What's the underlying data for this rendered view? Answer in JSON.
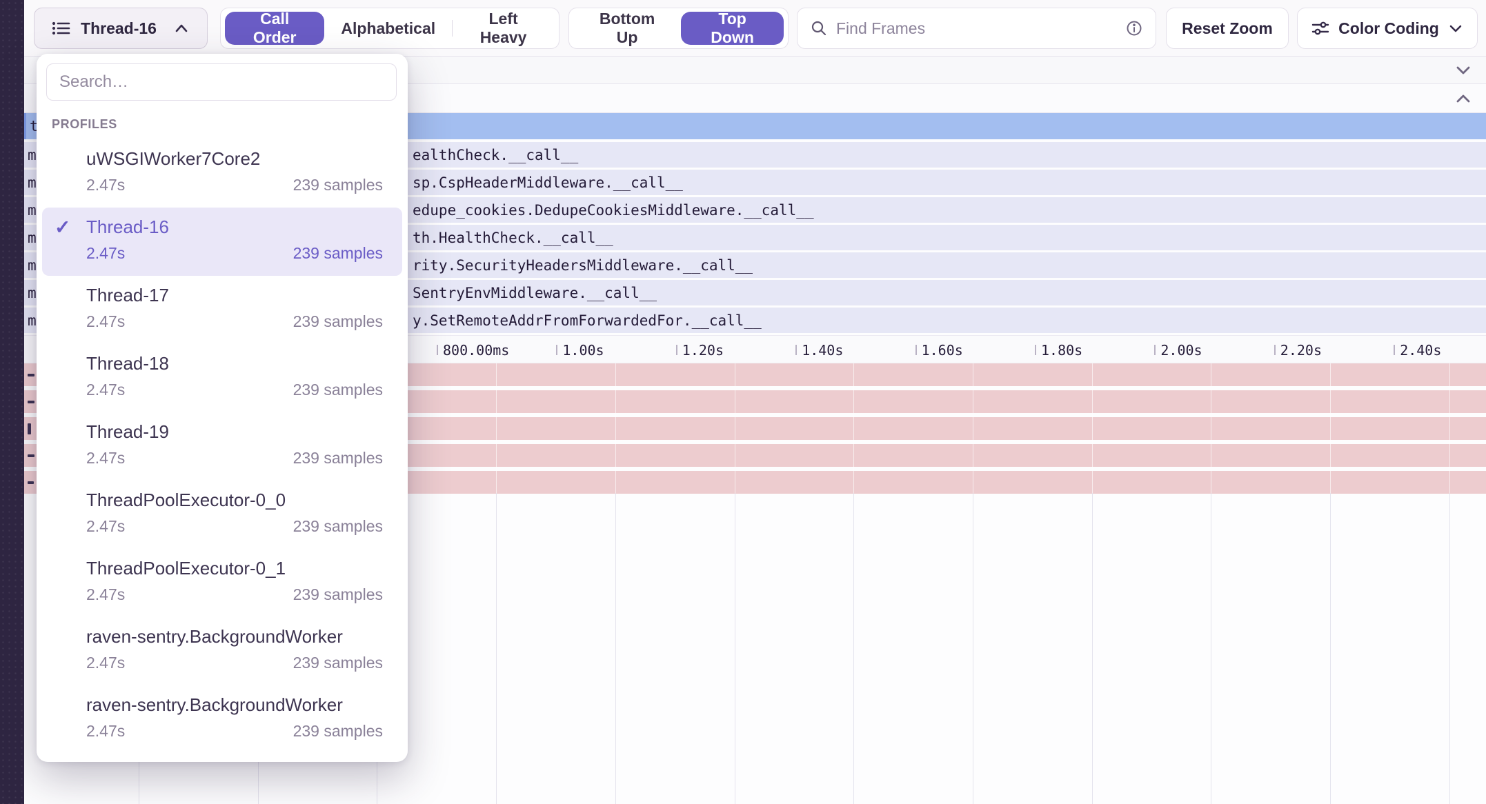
{
  "toolbar": {
    "thread_selector": {
      "label": "Thread-16"
    },
    "sort_segments": {
      "options": [
        "Call Order",
        "Alphabetical",
        "Left Heavy"
      ],
      "selected": "Call Order"
    },
    "direction_segments": {
      "options": [
        "Bottom Up",
        "Top Down"
      ],
      "selected": "Top Down"
    },
    "find_frames": {
      "placeholder": "Find Frames",
      "value": ""
    },
    "reset_zoom_label": "Reset Zoom",
    "color_coding_label": "Color Coding"
  },
  "dropdown": {
    "search_placeholder": "Search…",
    "section_label": "PROFILES",
    "selected_index": 1,
    "items": [
      {
        "name": "uWSGIWorker7Core2",
        "duration": "2.47s",
        "samples": "239 samples"
      },
      {
        "name": "Thread-16",
        "duration": "2.47s",
        "samples": "239 samples"
      },
      {
        "name": "Thread-17",
        "duration": "2.47s",
        "samples": "239 samples"
      },
      {
        "name": "Thread-18",
        "duration": "2.47s",
        "samples": "239 samples"
      },
      {
        "name": "Thread-19",
        "duration": "2.47s",
        "samples": "239 samples"
      },
      {
        "name": "ThreadPoolExecutor-0_0",
        "duration": "2.47s",
        "samples": "239 samples"
      },
      {
        "name": "ThreadPoolExecutor-0_1",
        "duration": "2.47s",
        "samples": "239 samples"
      },
      {
        "name": "raven-sentry.BackgroundWorker",
        "duration": "2.47s",
        "samples": "239 samples"
      },
      {
        "name": "raven-sentry.BackgroundWorker",
        "duration": "2.47s",
        "samples": "239 samples"
      }
    ]
  },
  "flamegraph": {
    "rows": [
      {
        "left_fragment": "t",
        "label": "",
        "selected": true
      },
      {
        "left_fragment": "m",
        "label": "ealthCheck.__call__",
        "selected": false
      },
      {
        "left_fragment": "m",
        "label": "sp.CspHeaderMiddleware.__call__",
        "selected": false
      },
      {
        "left_fragment": "m",
        "label": "edupe_cookies.DedupeCookiesMiddleware.__call__",
        "selected": false
      },
      {
        "left_fragment": "m",
        "label": "th.HealthCheck.__call__",
        "selected": false
      },
      {
        "left_fragment": "m",
        "label": "rity.SecurityHeadersMiddleware.__call__",
        "selected": false
      },
      {
        "left_fragment": "m",
        "label": "SentryEnvMiddleware.__call__",
        "selected": false
      },
      {
        "left_fragment": "m",
        "label": "y.SetRemoteAddrFromForwardedFor.__call__",
        "selected": false
      }
    ],
    "axis_ticks": [
      "800.00ms",
      "1.00s",
      "1.20s",
      "1.40s",
      "1.60s",
      "1.80s",
      "2.00s",
      "2.20s",
      "2.40s"
    ],
    "lower_band_row_count": 5,
    "colors": {
      "accent": "#6a5cc5",
      "selected_row": "#a3bef0",
      "row": "#e6e7f6",
      "lower_row": "#edcccf",
      "sidebar": "#2f2642"
    }
  }
}
